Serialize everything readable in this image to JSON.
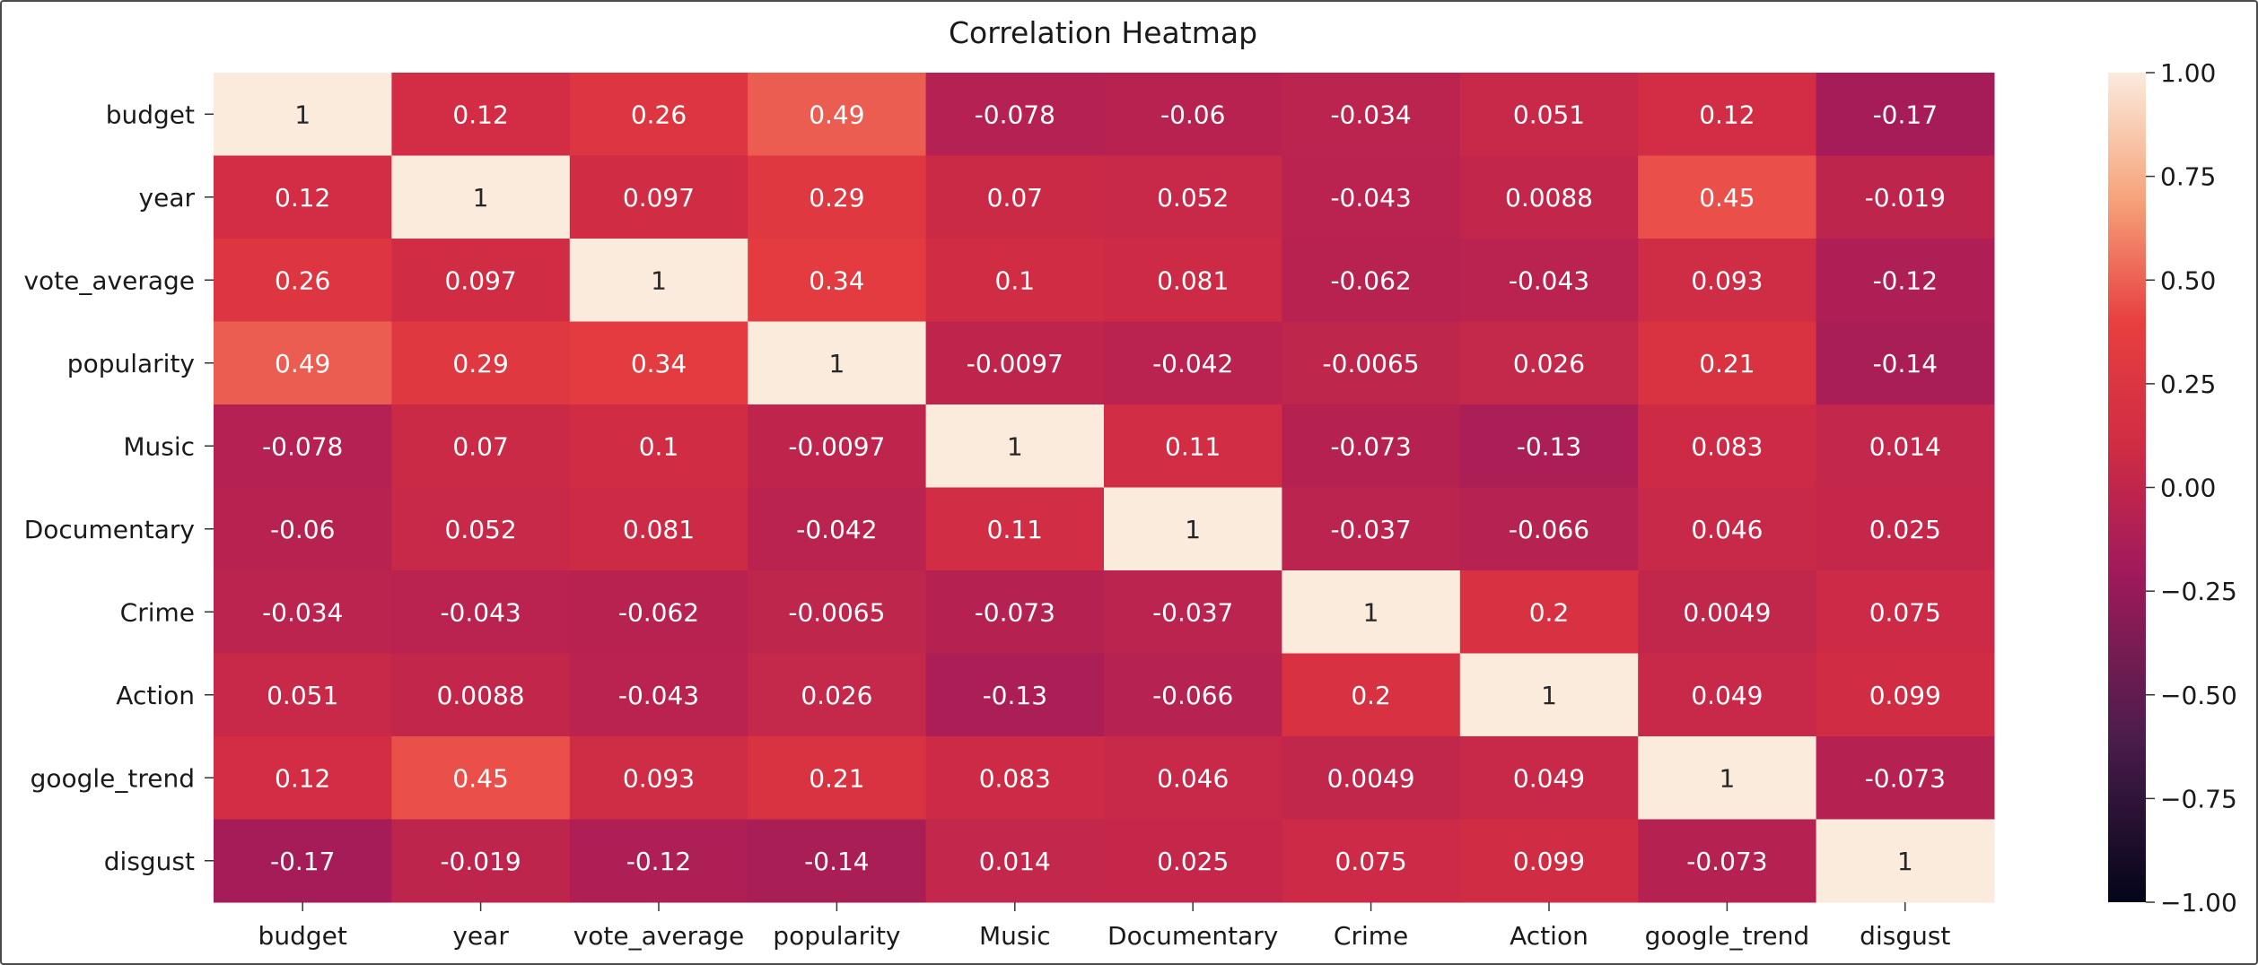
{
  "chart_data": {
    "type": "heatmap",
    "title": "Correlation Heatmap",
    "rows": [
      "budget",
      "year",
      "vote_average",
      "popularity",
      "Music",
      "Documentary",
      "Crime",
      "Action",
      "google_trend",
      "disgust"
    ],
    "columns": [
      "budget",
      "year",
      "vote_average",
      "popularity",
      "Music",
      "Documentary",
      "Crime",
      "Action",
      "google_trend",
      "disgust"
    ],
    "values": [
      [
        1,
        0.12,
        0.26,
        0.49,
        -0.078,
        -0.06,
        -0.034,
        0.051,
        0.12,
        -0.17
      ],
      [
        0.12,
        1,
        0.097,
        0.29,
        0.07,
        0.052,
        -0.043,
        0.0088,
        0.45,
        -0.019
      ],
      [
        0.26,
        0.097,
        1,
        0.34,
        0.1,
        0.081,
        -0.062,
        -0.043,
        0.093,
        -0.12
      ],
      [
        0.49,
        0.29,
        0.34,
        1,
        -0.0097,
        -0.042,
        -0.0065,
        0.026,
        0.21,
        -0.14
      ],
      [
        -0.078,
        0.07,
        0.1,
        -0.0097,
        1,
        0.11,
        -0.073,
        -0.13,
        0.083,
        0.014
      ],
      [
        -0.06,
        0.052,
        0.081,
        -0.042,
        0.11,
        1,
        -0.037,
        -0.066,
        0.046,
        0.025
      ],
      [
        -0.034,
        -0.043,
        -0.062,
        -0.0065,
        -0.073,
        -0.037,
        1,
        0.2,
        0.0049,
        0.075
      ],
      [
        0.051,
        0.0088,
        -0.043,
        0.026,
        -0.13,
        -0.066,
        0.2,
        1,
        0.049,
        0.099
      ],
      [
        0.12,
        0.45,
        0.093,
        0.21,
        0.083,
        0.046,
        0.0049,
        0.049,
        1,
        -0.073
      ],
      [
        -0.17,
        -0.019,
        -0.12,
        -0.14,
        0.014,
        0.025,
        0.075,
        0.099,
        -0.073,
        1
      ]
    ],
    "annotations": [
      [
        "1",
        "0.12",
        "0.26",
        "0.49",
        "-0.078",
        "-0.06",
        "-0.034",
        "0.051",
        "0.12",
        "-0.17"
      ],
      [
        "0.12",
        "1",
        "0.097",
        "0.29",
        "0.07",
        "0.052",
        "-0.043",
        "0.0088",
        "0.45",
        "-0.019"
      ],
      [
        "0.26",
        "0.097",
        "1",
        "0.34",
        "0.1",
        "0.081",
        "-0.062",
        "-0.043",
        "0.093",
        "-0.12"
      ],
      [
        "0.49",
        "0.29",
        "0.34",
        "1",
        "-0.0097",
        "-0.042",
        "-0.0065",
        "0.026",
        "0.21",
        "-0.14"
      ],
      [
        "-0.078",
        "0.07",
        "0.1",
        "-0.0097",
        "1",
        "0.11",
        "-0.073",
        "-0.13",
        "0.083",
        "0.014"
      ],
      [
        "-0.06",
        "0.052",
        "0.081",
        "-0.042",
        "0.11",
        "1",
        "-0.037",
        "-0.066",
        "0.046",
        "0.025"
      ],
      [
        "-0.034",
        "-0.043",
        "-0.062",
        "-0.0065",
        "-0.073",
        "-0.037",
        "1",
        "0.2",
        "0.0049",
        "0.075"
      ],
      [
        "0.051",
        "0.0088",
        "-0.043",
        "0.026",
        "-0.13",
        "-0.066",
        "0.2",
        "1",
        "0.049",
        "0.099"
      ],
      [
        "0.12",
        "0.45",
        "0.093",
        "0.21",
        "0.083",
        "0.046",
        "0.0049",
        "0.049",
        "1",
        "-0.073"
      ],
      [
        "-0.17",
        "-0.019",
        "-0.12",
        "-0.14",
        "0.014",
        "0.025",
        "0.075",
        "0.099",
        "-0.073",
        "1"
      ]
    ],
    "colorbar": {
      "range": [
        -1,
        1
      ],
      "ticks": [
        1,
        0.75,
        0.5,
        0.25,
        0,
        -0.25,
        -0.5,
        -0.75,
        -1
      ],
      "tick_labels": [
        "1.00",
        "0.75",
        "0.50",
        "0.25",
        "0.00",
        "−0.25",
        "−0.50",
        "−0.75",
        "−1.00"
      ],
      "colormap": "rocket",
      "stops": [
        [
          0.0,
          "#03051a"
        ],
        [
          0.2,
          "#4c1d4b"
        ],
        [
          0.4,
          "#a11a5b"
        ],
        [
          0.55,
          "#d02c44"
        ],
        [
          0.7,
          "#e83f3f"
        ],
        [
          0.85,
          "#f6a47b"
        ],
        [
          1.0,
          "#faebdd"
        ]
      ]
    },
    "grid": false
  }
}
